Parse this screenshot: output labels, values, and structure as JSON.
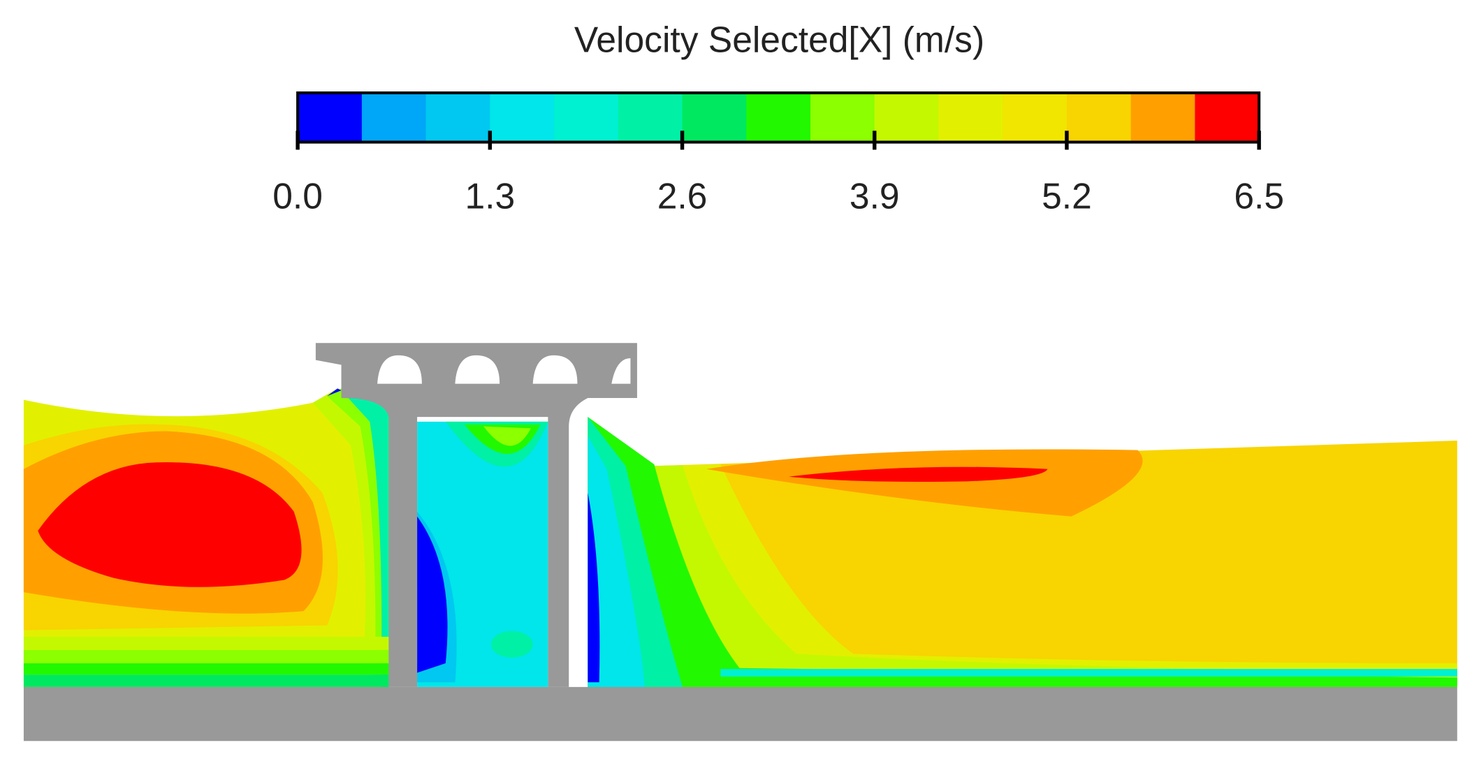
{
  "chart_data": {
    "type": "contour",
    "title": "Velocity Selected[X] (m/s)",
    "colorbar": {
      "lim": [
        0,
        6.5
      ],
      "ticks": [
        {
          "value": 0,
          "label": "0.0"
        },
        1.3,
        2.6,
        3.9,
        5.2,
        6.5
      ],
      "colors": [
        "#0000ff",
        "#00a6f8",
        "#00c8f0",
        "#00e6ea",
        "#00f0d2",
        "#00f0a6",
        "#00e860",
        "#22f800",
        "#8cff00",
        "#c4f800",
        "#e2f000",
        "#f0e600",
        "#f8d400",
        "#ffa000",
        "#ff0000"
      ]
    }
  }
}
